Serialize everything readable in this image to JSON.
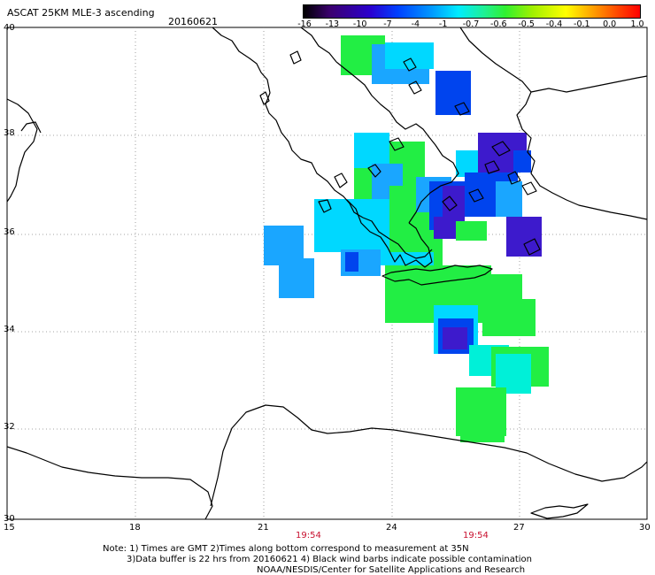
{
  "header": {
    "title": "ASCAT 25KM MLE-3 ascending",
    "date": "20160621"
  },
  "colorbar": {
    "labels": [
      "-16",
      "-13",
      "-10",
      "-7",
      "-4",
      "-1",
      "-0.7",
      "-0.6",
      "-0.5",
      "-0.4",
      "-0.1",
      "0.0",
      "1.0"
    ],
    "gradient": [
      "#000000",
      "#3b0070",
      "#2a00d0",
      "#0040ff",
      "#0098ff",
      "#00ecff",
      "#20f090",
      "#30f030",
      "#a0f000",
      "#ffff00",
      "#ffa000",
      "#ff4000",
      "#ff0000"
    ]
  },
  "axes": {
    "lat_labels": [
      "40",
      "38",
      "36",
      "34",
      "32",
      "30"
    ],
    "lon_labels": [
      "15",
      "18",
      "21",
      "24",
      "27",
      "30"
    ],
    "pass_times": [
      "19:54",
      "19:54"
    ]
  },
  "footer": {
    "line1": "Note: 1) Times are GMT 2)Times along bottom correspond to measurement at 35N",
    "line2": "3)Data buffer is 22 hrs from 20160621 4) Black wind barbs indicate possible contamination",
    "line3": "NOAA/NESDIS/Center for Satellite Applications and Research"
  },
  "colors": {
    "coast": "#000000",
    "time_text": "#c8102e",
    "green": "#22ee44",
    "cyan": "#00d8ff",
    "azure": "#1aa6ff",
    "blue": "#0044ee",
    "indigo": "#3d1acc",
    "aqua": "#00f0d8"
  }
}
